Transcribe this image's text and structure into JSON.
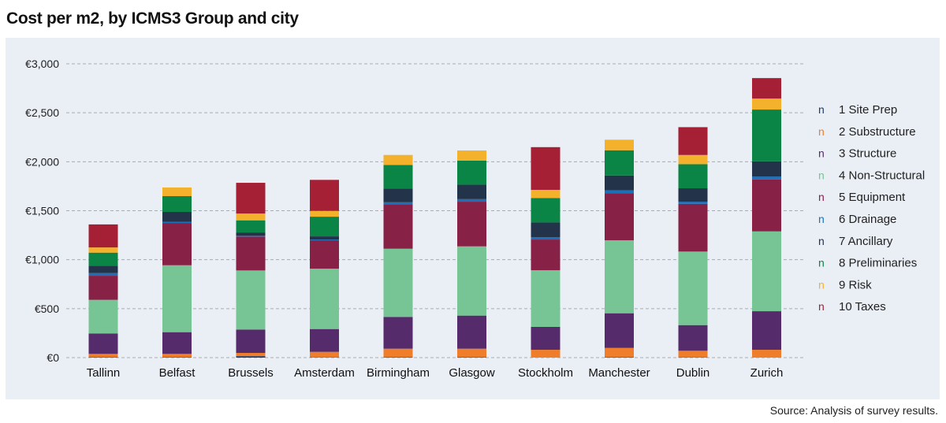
{
  "title": "Cost per m2, by ICMS3 Group and city",
  "source": "Source: Analysis of survey results.",
  "chart_data": {
    "type": "bar",
    "stacked": true,
    "title": "Cost per m2, by ICMS3 Group and city",
    "xlabel": "",
    "ylabel": "",
    "ylim": [
      0,
      3000
    ],
    "yticks": [
      0,
      500,
      1000,
      1500,
      2000,
      2500,
      3000
    ],
    "ytick_labels": [
      "€0",
      "€500",
      "€1,000",
      "€1,500",
      "€2,000",
      "€2,500",
      "€3,000"
    ],
    "grid": true,
    "legend_position": "right",
    "legend_marker": "n",
    "categories": [
      "Tallinn",
      "Belfast",
      "Brussels",
      "Amsterdam",
      "Birmingham",
      "Glasgow",
      "Stockholm",
      "Manchester",
      "Dublin",
      "Zurich"
    ],
    "series": [
      {
        "name": "1 Site Prep",
        "color": "#1f3a6b",
        "values": [
          5,
          5,
          15,
          3,
          5,
          5,
          0,
          5,
          3,
          0
        ]
      },
      {
        "name": "2 Substructure",
        "color": "#f07d2a",
        "values": [
          33,
          33,
          33,
          56,
          86,
          86,
          80,
          94,
          67,
          80
        ]
      },
      {
        "name": "3 Structure",
        "color": "#552b6b",
        "values": [
          209,
          222,
          239,
          233,
          325,
          338,
          234,
          354,
          262,
          394
        ]
      },
      {
        "name": "4 Non-Structural",
        "color": "#77c594",
        "values": [
          343,
          683,
          603,
          616,
          696,
          707,
          578,
          745,
          751,
          815
        ]
      },
      {
        "name": "5 Equipment",
        "color": "#872146",
        "values": [
          246,
          432,
          346,
          290,
          453,
          456,
          314,
          482,
          487,
          530
        ]
      },
      {
        "name": "6 Drainage",
        "color": "#1d6fb8",
        "values": [
          27,
          10,
          8,
          8,
          21,
          26,
          24,
          27,
          22,
          30
        ]
      },
      {
        "name": "7 Ancillary",
        "color": "#22334a",
        "values": [
          75,
          103,
          34,
          32,
          140,
          148,
          150,
          153,
          137,
          155
        ]
      },
      {
        "name": "8 Preliminaries",
        "color": "#0b8545",
        "values": [
          134,
          161,
          124,
          201,
          241,
          246,
          250,
          257,
          246,
          529
        ]
      },
      {
        "name": "9 Risk",
        "color": "#f3b12c",
        "values": [
          53,
          88,
          69,
          59,
          102,
          103,
          83,
          108,
          94,
          112
        ]
      },
      {
        "name": "10 Taxes",
        "color": "#a51f35",
        "values": [
          235,
          0,
          314,
          317,
          0,
          0,
          436,
          0,
          284,
          209
        ]
      }
    ]
  }
}
